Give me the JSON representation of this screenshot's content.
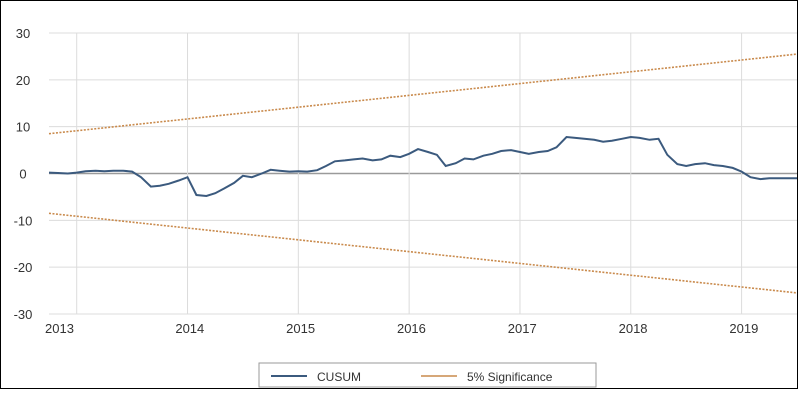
{
  "chart_data": {
    "type": "line",
    "title": "",
    "xlabel": "",
    "ylabel": "",
    "x_ticks": [
      "2013",
      "2014",
      "2015",
      "2016",
      "2017",
      "2018",
      "2019"
    ],
    "y_ticks": [
      "30",
      "20",
      "10",
      "0",
      "-10",
      "-20",
      "-30"
    ],
    "ylim": [
      -30,
      30
    ],
    "xlim": [
      2013.0,
      2019.75
    ],
    "grid": true,
    "legend_position": "bottom",
    "series": [
      {
        "name": "CUSUM",
        "color": "#3b5a7e",
        "x": [
          2013.0,
          2013.08,
          2013.17,
          2013.25,
          2013.33,
          2013.42,
          2013.5,
          2013.58,
          2013.67,
          2013.75,
          2013.83,
          2013.92,
          2014.0,
          2014.08,
          2014.17,
          2014.25,
          2014.33,
          2014.42,
          2014.5,
          2014.58,
          2014.67,
          2014.75,
          2014.83,
          2014.92,
          2015.0,
          2015.08,
          2015.17,
          2015.25,
          2015.33,
          2015.42,
          2015.5,
          2015.58,
          2015.67,
          2015.75,
          2015.83,
          2015.92,
          2016.0,
          2016.08,
          2016.17,
          2016.25,
          2016.33,
          2016.42,
          2016.5,
          2016.58,
          2016.67,
          2016.75,
          2016.83,
          2016.92,
          2017.0,
          2017.08,
          2017.17,
          2017.25,
          2017.33,
          2017.42,
          2017.5,
          2017.58,
          2017.67,
          2017.75,
          2017.83,
          2017.92,
          2018.0,
          2018.08,
          2018.17,
          2018.25,
          2018.33,
          2018.42,
          2018.5,
          2018.58,
          2018.67,
          2018.75,
          2018.83,
          2018.92,
          2019.0,
          2019.08,
          2019.17,
          2019.25,
          2019.33,
          2019.42,
          2019.5,
          2019.58,
          2019.67,
          2019.75
        ],
        "values": [
          0.2,
          0.1,
          0.0,
          0.2,
          0.5,
          0.6,
          0.5,
          0.6,
          0.6,
          0.4,
          -0.8,
          -2.8,
          -2.6,
          -2.2,
          -1.5,
          -0.8,
          -4.6,
          -4.8,
          -4.2,
          -3.2,
          -2.0,
          -0.5,
          -0.8,
          0.0,
          0.8,
          0.6,
          0.4,
          0.5,
          0.4,
          0.7,
          1.6,
          2.6,
          2.8,
          3.0,
          3.2,
          2.8,
          3.0,
          3.8,
          3.5,
          4.2,
          5.2,
          4.6,
          4.0,
          1.6,
          2.2,
          3.2,
          3.0,
          3.8,
          4.2,
          4.8,
          5.0,
          4.6,
          4.2,
          4.6,
          4.8,
          5.6,
          7.8,
          7.6,
          7.4,
          7.2,
          6.8,
          7.0,
          7.4,
          7.8,
          7.6,
          7.2,
          7.4,
          4.0,
          2.0,
          1.6,
          2.0,
          2.2,
          1.8,
          1.6,
          1.2,
          0.4,
          -0.8,
          -1.2,
          -1.0,
          -1.0,
          -1.0,
          -1.0
        ]
      },
      {
        "name": "5% Significance",
        "color": "#c98a4c",
        "dashed": true,
        "x": [
          2013.0,
          2019.75
        ],
        "values": [
          8.5,
          25.5
        ]
      },
      {
        "name": "",
        "color": "#c98a4c",
        "dashed": true,
        "x": [
          2013.0,
          2019.75
        ],
        "values": [
          -8.5,
          -25.5
        ]
      }
    ]
  }
}
